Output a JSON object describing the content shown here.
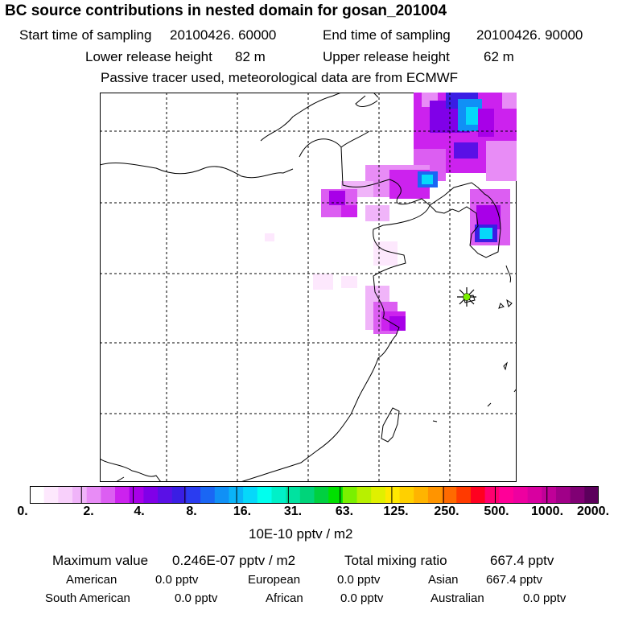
{
  "header": {
    "title": "BC  source contributions in nested domain for gosan_201004",
    "start_label": "Start time of sampling",
    "start_value": "20100426. 60000",
    "end_label": "End time of sampling",
    "end_value": "20100426. 90000",
    "lower_label": "Lower release height",
    "lower_value": "82 m",
    "upper_label": "Upper release height",
    "upper_value": "62 m",
    "note": "Passive tracer used, meteorological data are from ECMWF"
  },
  "map": {
    "receptor_marker": "star-icon",
    "grid": "dashed"
  },
  "colorbar": {
    "ticks": [
      "0.",
      "2.",
      "4.",
      "8.",
      "16.",
      "31.",
      "63.",
      "125.",
      "250.",
      "500.",
      "1000.",
      "2000."
    ],
    "colors": [
      "#ffffff",
      "#fde8fd",
      "#f8d0fb",
      "#f0b4f9",
      "#e88cf6",
      "#dc5ef2",
      "#cc22ee",
      "#a800e8",
      "#8000e8",
      "#5a10e6",
      "#3a1ee4",
      "#2a3cf0",
      "#1a66f4",
      "#1090f6",
      "#0ab4f8",
      "#06d8fa",
      "#00ffee",
      "#00f0c8",
      "#00e2a0",
      "#00d47a",
      "#00d040",
      "#00e000",
      "#7af000",
      "#b8f000",
      "#e0f000",
      "#ffe800",
      "#ffd000",
      "#ffb400",
      "#ff9400",
      "#ff6a00",
      "#ff3a00",
      "#ff0020",
      "#ff0070",
      "#ff0098",
      "#ee00a0",
      "#d800a0",
      "#c00098",
      "#a00088",
      "#800074",
      "#5c005c"
    ],
    "unit": "10E-10 pptv / m2"
  },
  "stats": {
    "max_label": "Maximum value",
    "max_value": "0.246E-07 pptv / m2",
    "total_label": "Total mixing ratio",
    "total_value": "667.4 pptv",
    "regions": [
      {
        "label": "American",
        "value": "0.0 pptv"
      },
      {
        "label": "European",
        "value": "0.0 pptv"
      },
      {
        "label": "Asian",
        "value": "667.4 pptv"
      },
      {
        "label": "South American",
        "value": "0.0 pptv"
      },
      {
        "label": "African",
        "value": "0.0 pptv"
      },
      {
        "label": "Australian",
        "value": "0.0 pptv"
      }
    ]
  }
}
